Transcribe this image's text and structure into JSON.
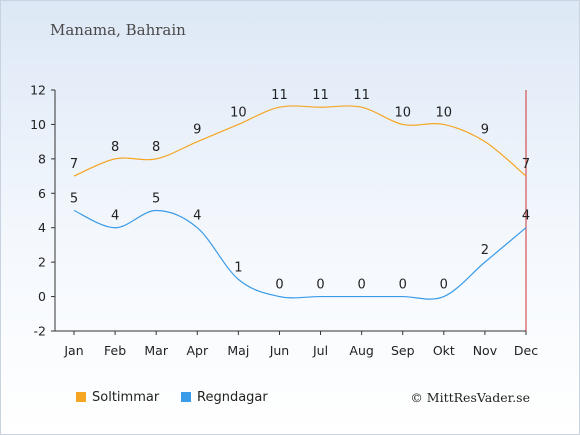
{
  "chart_data": {
    "type": "line",
    "title": "Manama, Bahrain",
    "categories": [
      "Jan",
      "Feb",
      "Mar",
      "Apr",
      "Maj",
      "Jun",
      "Jul",
      "Aug",
      "Sep",
      "Okt",
      "Nov",
      "Dec"
    ],
    "series": [
      {
        "name": "Soltimmar",
        "color": "#f5a623",
        "values": [
          7,
          8,
          8,
          9,
          10,
          11,
          11,
          11,
          10,
          10,
          9,
          7
        ]
      },
      {
        "name": "Regndagar",
        "color": "#3a9be8",
        "values": [
          5,
          4,
          5,
          4,
          1,
          0,
          0,
          0,
          0,
          0,
          2,
          4
        ]
      }
    ],
    "ylim": [
      -2,
      12
    ],
    "yticks": [
      -2,
      0,
      2,
      4,
      6,
      8,
      10,
      12
    ],
    "legend": "bottom-left",
    "grid": false
  },
  "credit": "© MittResVader.se"
}
